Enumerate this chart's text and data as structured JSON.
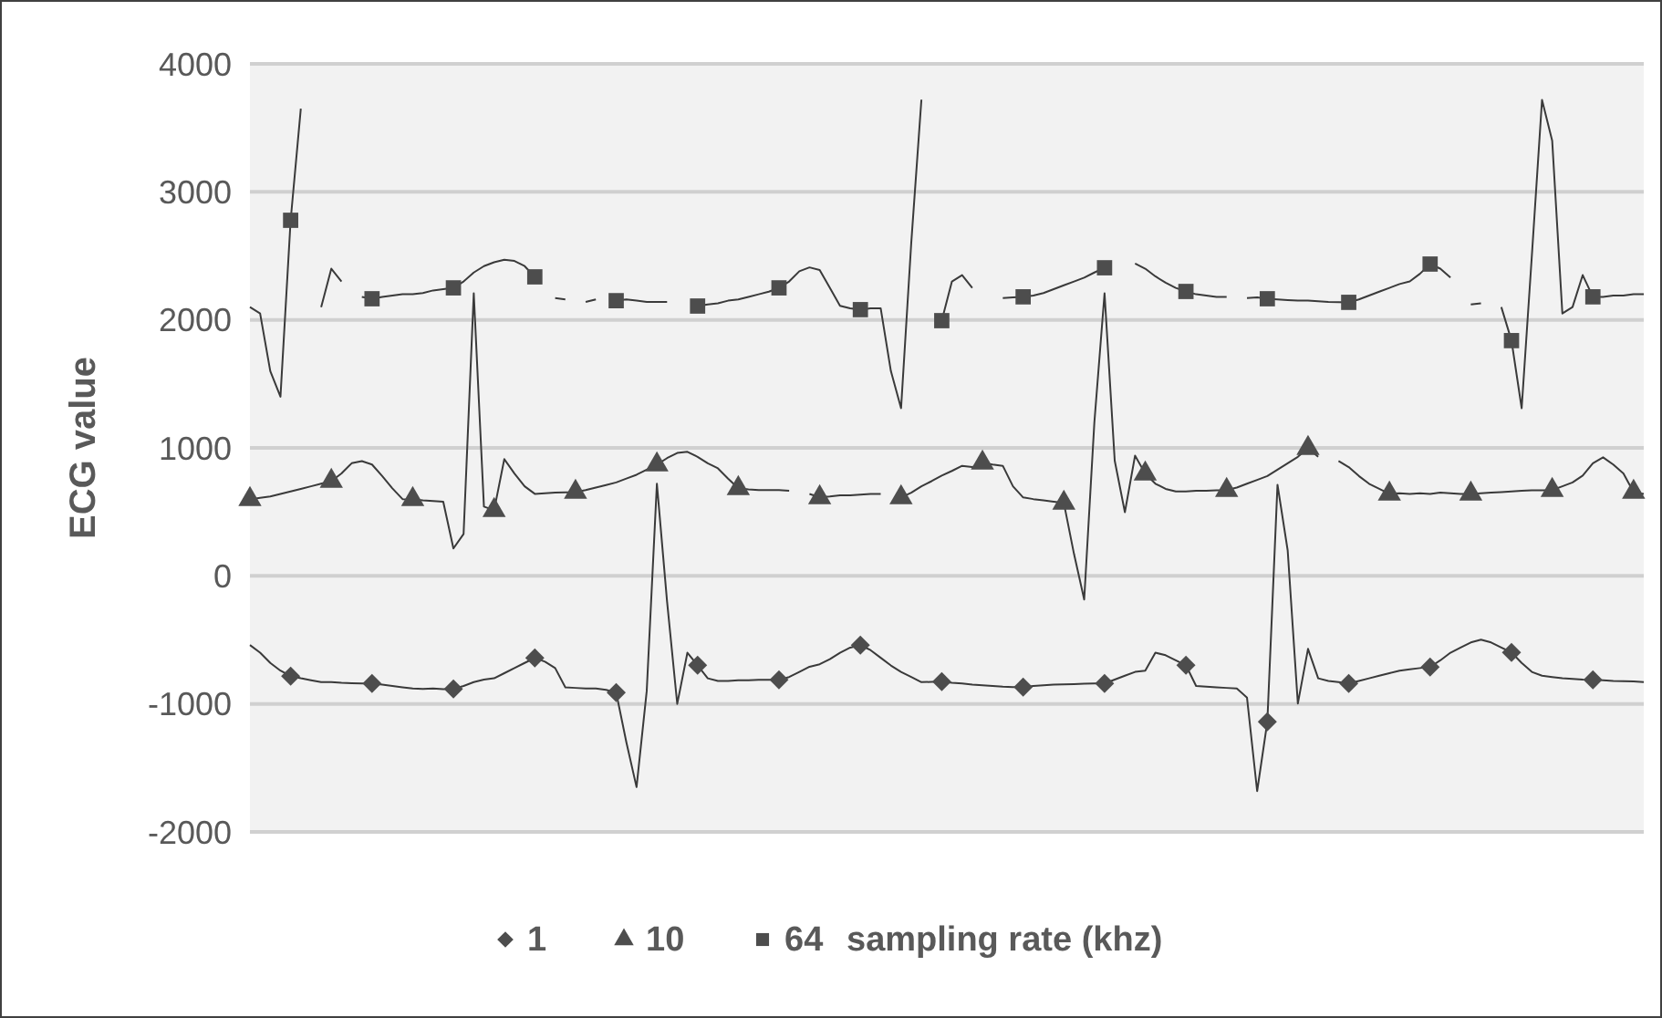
{
  "chart_data": {
    "type": "line",
    "ylabel": "ECG value",
    "legend_title": "sampling rate (khz)",
    "legend": "bottom",
    "grid": "y",
    "tick_labels": "y",
    "ylim": [
      -2000,
      4000
    ],
    "yticks": [
      -2000,
      -1000,
      0,
      1000,
      2000,
      3000,
      4000
    ],
    "categories": [
      null,
      null,
      null,
      null,
      null,
      null,
      null,
      null,
      null,
      null,
      null,
      null,
      null,
      null,
      null,
      null,
      null,
      null,
      null,
      null,
      null,
      null,
      null,
      null,
      null,
      null,
      null,
      null,
      null,
      null,
      null,
      null,
      null,
      null,
      null,
      null,
      null,
      null,
      null,
      null,
      null,
      null,
      null,
      null,
      null,
      null,
      null,
      null,
      null,
      null,
      null,
      null,
      null,
      null,
      null,
      null,
      null,
      null,
      null,
      null,
      null,
      null,
      null,
      null,
      null,
      null,
      null,
      null,
      null,
      null,
      null,
      null,
      null,
      null,
      null,
      null,
      null,
      null,
      null,
      null,
      null,
      null,
      null,
      null,
      null,
      null,
      null,
      null,
      null,
      null,
      null,
      null,
      null,
      null,
      null,
      null,
      null,
      null,
      null,
      null,
      null,
      null,
      null,
      null,
      null,
      null,
      null,
      null,
      null,
      null,
      null,
      null,
      null,
      null,
      null,
      null,
      null,
      null,
      null,
      null,
      null,
      null,
      null,
      null,
      null,
      null,
      null,
      null,
      null,
      null,
      null,
      null,
      null,
      null,
      null,
      null,
      null,
      null
    ],
    "series": [
      {
        "type": "line",
        "marker": "none",
        "color": "#3a3a3a",
        "values": [
          -540,
          -600,
          -680,
          -740,
          -783,
          -800,
          -815,
          -830,
          -830,
          -835,
          -838,
          -840,
          -840,
          -850,
          -860,
          -870,
          -880,
          -883,
          -880,
          -885,
          -883,
          -860,
          -830,
          -810,
          -800,
          -760,
          -720,
          -680,
          -641,
          -670,
          -720,
          -870,
          -875,
          -880,
          -880,
          -890,
          -912,
          -1300,
          -1650,
          -900,
          720,
          -200,
          -1000,
          -600,
          -698,
          -800,
          -820,
          -820,
          -815,
          -815,
          -812,
          -812,
          -812,
          -790,
          -750,
          -710,
          -690,
          -650,
          -600,
          -560,
          -541,
          -580,
          -640,
          -700,
          -750,
          -790,
          -830,
          -828,
          -826,
          -835,
          -840,
          -850,
          -855,
          -860,
          -865,
          -868,
          -869,
          -860,
          -855,
          -850,
          -848,
          -845,
          -842,
          -840,
          -840,
          -810,
          -780,
          -750,
          -740,
          -600,
          -620,
          -660,
          -698,
          -860,
          -865,
          -870,
          -875,
          -880,
          -950,
          -1681,
          -1140,
          712,
          200,
          -997,
          -570,
          -800,
          -820,
          -830,
          -840,
          -820,
          -800,
          -780,
          -760,
          -740,
          -730,
          -720,
          -712,
          -660,
          -600,
          -560,
          -520,
          -498,
          -520,
          -560,
          -598,
          -680,
          -750,
          -780,
          -790,
          -800,
          -805,
          -810,
          -812,
          -815,
          -820,
          -822,
          -825,
          -830
        ]
      },
      {
        "type": "line",
        "marker": "none",
        "color": "#3a3a3a",
        "values": [
          598,
          610,
          620,
          640,
          660,
          680,
          700,
          720,
          740,
          800,
          880,
          897,
          870,
          780,
          684,
          600,
          598,
          590,
          585,
          580,
          214,
          328,
          2208,
          541,
          513,
          912,
          800,
          700,
          641,
          645,
          650,
          652,
          655,
          670,
          690,
          710,
          730,
          760,
          790,
          830,
          869,
          920,
          960,
          969,
          930,
          880,
          840,
          760,
          684,
          675,
          670,
          670,
          670,
          665,
          null,
          640,
          613,
          620,
          630,
          630,
          635,
          640,
          640,
          null,
          613,
          650,
          700,
          740,
          783,
          820,
          860,
          850,
          883,
          870,
          860,
          700,
          613,
          600,
          590,
          580,
          570,
          171,
          -185,
          1200,
          2208,
          900,
          498,
          940,
          798,
          720,
          680,
          660,
          660,
          665,
          665,
          668,
          670,
          690,
          720,
          750,
          780,
          830,
          880,
          930,
          997,
          930,
          null,
          897,
          850,
          780,
          720,
          680,
          641,
          645,
          640,
          645,
          640,
          650,
          645,
          640,
          641,
          645,
          650,
          655,
          660,
          665,
          668,
          669,
          670,
          700,
          730,
          783,
          880,
          926,
          870,
          800,
          655,
          640
        ]
      },
      {
        "type": "line",
        "marker": "none",
        "color": "#3a3a3a",
        "values": [
          2100,
          2050,
          1600,
          1400,
          2778,
          3650,
          null,
          2100,
          2400,
          2300,
          null,
          2180,
          2165,
          2180,
          2190,
          2200,
          2200,
          2210,
          2230,
          2240,
          2250,
          2300,
          2370,
          2420,
          2450,
          2470,
          2460,
          2420,
          2336,
          null,
          2170,
          2160,
          null,
          2140,
          2160,
          null,
          2150,
          2160,
          2150,
          2140,
          2140,
          2140,
          null,
          null,
          2108,
          2120,
          2130,
          2150,
          2160,
          2180,
          2200,
          2220,
          2250,
          2300,
          2380,
          2410,
          2390,
          2250,
          2110,
          2090,
          2080,
          2090,
          2090,
          1600,
          1310,
          2600,
          3720,
          null,
          1994,
          2300,
          2350,
          2250,
          null,
          null,
          2170,
          2175,
          2180,
          2190,
          2210,
          2240,
          2270,
          2300,
          2330,
          2370,
          2407,
          null,
          null,
          2440,
          2400,
          2340,
          2290,
          2250,
          2222,
          2200,
          2190,
          2180,
          2180,
          null,
          2170,
          2175,
          2165,
          2160,
          2155,
          2150,
          2150,
          2145,
          2140,
          2138,
          2137,
          2160,
          2190,
          2220,
          2250,
          2280,
          2300,
          2360,
          2436,
          2400,
          2330,
          null,
          2120,
          2130,
          null,
          2100,
          1838,
          1310,
          2500,
          3718,
          3400,
          2050,
          2100,
          2350,
          2180,
          2180,
          2190,
          2190,
          2200,
          2200
        ]
      },
      {
        "type": "scatter",
        "name": "1",
        "marker": "diamond",
        "color": "#4d4d4d",
        "values": [
          null,
          null,
          null,
          null,
          -783,
          null,
          null,
          null,
          null,
          null,
          null,
          null,
          -840,
          null,
          null,
          null,
          null,
          null,
          null,
          null,
          -883,
          null,
          null,
          null,
          null,
          null,
          null,
          null,
          -641,
          null,
          null,
          null,
          null,
          null,
          null,
          null,
          -912,
          null,
          null,
          null,
          null,
          null,
          null,
          null,
          -698,
          null,
          null,
          null,
          null,
          null,
          null,
          null,
          -812,
          null,
          null,
          null,
          null,
          null,
          null,
          null,
          -541,
          null,
          null,
          null,
          null,
          null,
          null,
          null,
          -826,
          null,
          null,
          null,
          null,
          null,
          null,
          null,
          -869,
          null,
          null,
          null,
          null,
          null,
          null,
          null,
          -840,
          null,
          null,
          null,
          null,
          null,
          null,
          null,
          -698,
          null,
          null,
          null,
          null,
          null,
          null,
          null,
          -1140,
          null,
          null,
          null,
          null,
          null,
          null,
          null,
          -840,
          null,
          null,
          null,
          null,
          null,
          null,
          null,
          -712,
          null,
          null,
          null,
          null,
          null,
          null,
          null,
          -598,
          null,
          null,
          null,
          null,
          null,
          null,
          null,
          -812,
          null,
          null,
          null,
          null,
          null
        ]
      },
      {
        "type": "scatter",
        "name": "10",
        "marker": "triangle",
        "color": "#4d4d4d",
        "values": [
          598,
          null,
          null,
          null,
          null,
          null,
          null,
          null,
          740,
          null,
          null,
          null,
          null,
          null,
          null,
          null,
          598,
          null,
          null,
          null,
          null,
          null,
          null,
          null,
          513,
          null,
          null,
          null,
          null,
          null,
          null,
          null,
          655,
          null,
          null,
          null,
          null,
          null,
          null,
          null,
          869,
          null,
          null,
          null,
          null,
          null,
          null,
          null,
          684,
          null,
          null,
          null,
          null,
          null,
          null,
          null,
          613,
          null,
          null,
          null,
          null,
          null,
          null,
          null,
          613,
          null,
          null,
          null,
          null,
          null,
          null,
          null,
          883,
          null,
          null,
          null,
          null,
          null,
          null,
          null,
          570,
          null,
          null,
          null,
          null,
          null,
          null,
          null,
          798,
          null,
          null,
          null,
          null,
          null,
          null,
          null,
          670,
          null,
          null,
          null,
          null,
          null,
          null,
          null,
          997,
          null,
          null,
          null,
          null,
          null,
          null,
          null,
          641,
          null,
          null,
          null,
          null,
          null,
          null,
          null,
          641,
          null,
          null,
          null,
          null,
          null,
          null,
          null,
          670,
          null,
          null,
          null,
          null,
          null,
          null,
          null,
          655,
          null
        ]
      },
      {
        "type": "scatter",
        "name": "64",
        "marker": "square",
        "color": "#4d4d4d",
        "values": [
          null,
          null,
          null,
          null,
          2778,
          null,
          null,
          null,
          null,
          null,
          null,
          null,
          2165,
          null,
          null,
          null,
          null,
          null,
          null,
          null,
          2250,
          null,
          null,
          null,
          null,
          null,
          null,
          null,
          2336,
          null,
          null,
          null,
          null,
          null,
          null,
          null,
          2150,
          null,
          null,
          null,
          null,
          null,
          null,
          null,
          2108,
          null,
          null,
          null,
          null,
          null,
          null,
          null,
          2250,
          null,
          null,
          null,
          null,
          null,
          null,
          null,
          2080,
          null,
          null,
          null,
          null,
          null,
          null,
          null,
          1994,
          null,
          null,
          null,
          null,
          null,
          null,
          null,
          2180,
          null,
          null,
          null,
          null,
          null,
          null,
          null,
          2407,
          null,
          null,
          null,
          null,
          null,
          null,
          null,
          2222,
          null,
          null,
          null,
          null,
          null,
          null,
          null,
          2165,
          null,
          null,
          null,
          null,
          null,
          null,
          null,
          2137,
          null,
          null,
          null,
          null,
          null,
          null,
          null,
          2436,
          null,
          null,
          null,
          null,
          null,
          null,
          null,
          1838,
          null,
          null,
          null,
          null,
          null,
          null,
          null,
          2180,
          null,
          null,
          null,
          null,
          null
        ]
      }
    ]
  }
}
